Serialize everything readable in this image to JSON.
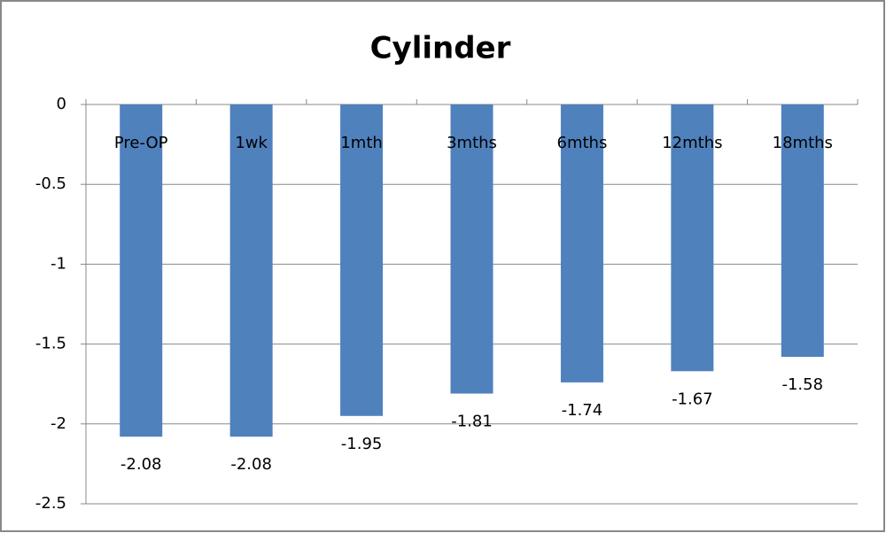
{
  "chart_data": {
    "type": "bar",
    "title": "Cylinder",
    "categories": [
      "Pre-OP",
      "1wk",
      "1mth",
      "3mths",
      "6mths",
      "12mths",
      "18mths"
    ],
    "values": [
      -2.08,
      -2.08,
      -1.95,
      -1.81,
      -1.74,
      -1.67,
      -1.58
    ],
    "color": "#4f81bd",
    "ylim": [
      -2.5,
      0
    ],
    "yticks": [
      0,
      -0.5,
      -1,
      -1.5,
      -2,
      -2.5
    ],
    "grid": true
  }
}
